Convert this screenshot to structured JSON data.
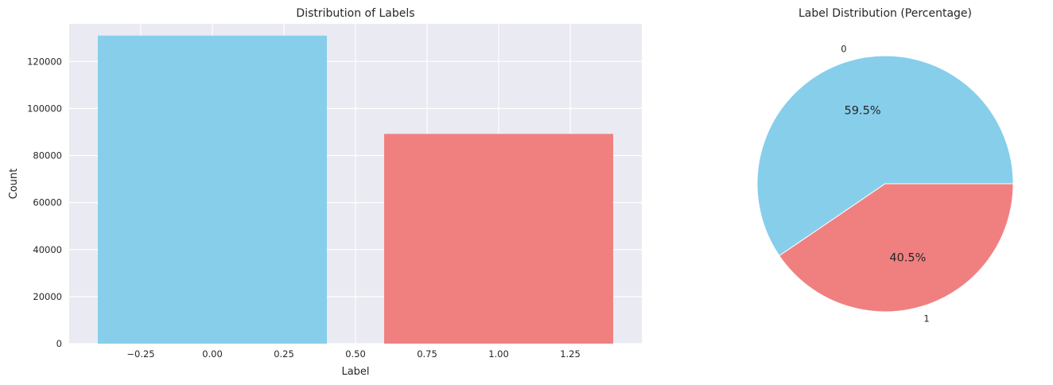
{
  "chart_data": [
    {
      "type": "bar",
      "title": "Distribution of Labels",
      "xlabel": "Label",
      "ylabel": "Count",
      "bars": [
        {
          "x": 0,
          "value": 131000,
          "color": "#87CEEB"
        },
        {
          "x": 1,
          "value": 89200,
          "color": "#F08080"
        }
      ],
      "bar_width": 0.8,
      "xlim": [
        -0.5,
        1.5
      ],
      "ylim": [
        0,
        136000
      ],
      "xticks": [
        -0.25,
        0.0,
        0.25,
        0.5,
        0.75,
        1.0,
        1.25
      ],
      "xtick_labels": [
        "−0.25",
        "0.00",
        "0.25",
        "0.50",
        "0.75",
        "1.00",
        "1.25"
      ],
      "yticks": [
        0,
        20000,
        40000,
        60000,
        80000,
        100000,
        120000
      ],
      "ytick_labels": [
        "0",
        "20000",
        "40000",
        "60000",
        "80000",
        "100000",
        "120000"
      ],
      "grid": true,
      "background": "#EAEAF2"
    },
    {
      "type": "pie",
      "title": "Label Distribution (Percentage)",
      "labels": [
        "0",
        "1"
      ],
      "values": [
        59.5,
        40.5
      ],
      "percent_labels": [
        "59.5%",
        "40.5%"
      ],
      "colors": [
        "#87CEEB",
        "#F08080"
      ]
    }
  ]
}
